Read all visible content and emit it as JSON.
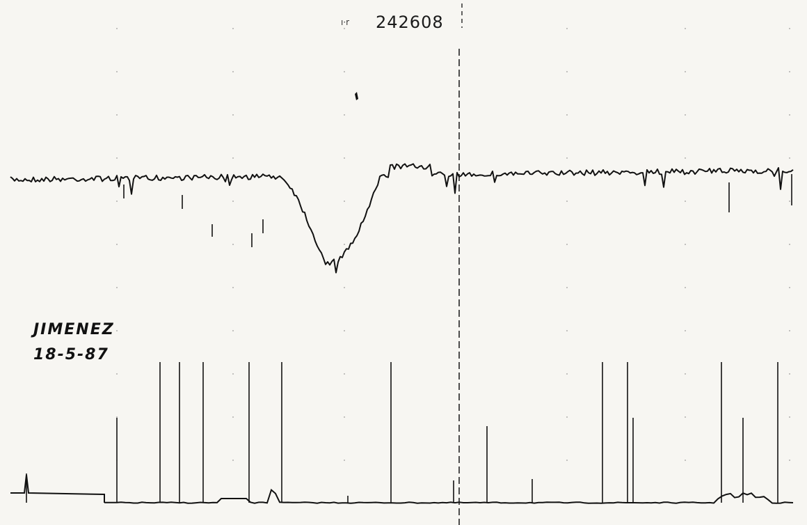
{
  "header": {
    "id": "242608"
  },
  "annotation": {
    "name": "JIMENEZ",
    "date": "18-5-87"
  }
}
